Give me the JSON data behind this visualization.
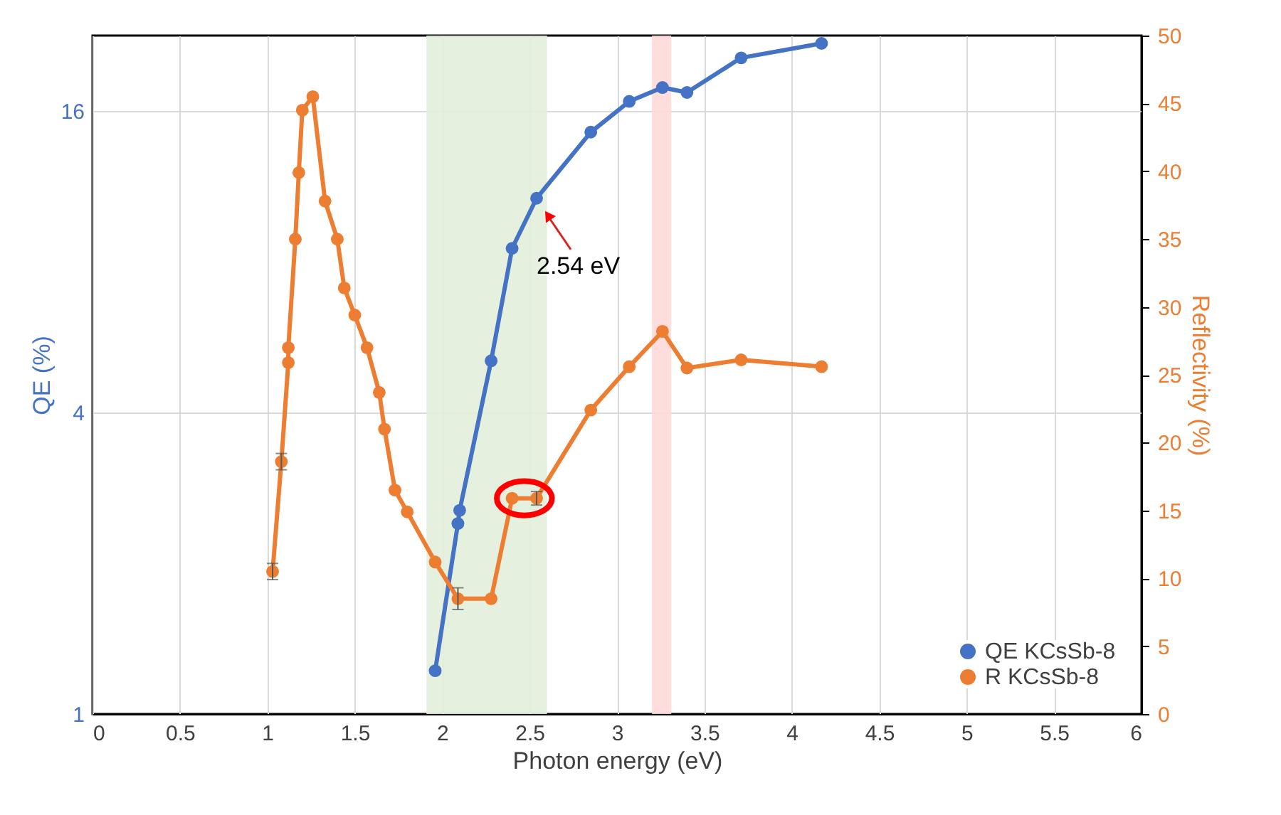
{
  "chart_data": {
    "type": "line",
    "xlabel": "Photon energy (eV)",
    "ylabel": "QE (%)",
    "y2label": "Reflectivity (%)",
    "xlim": [
      0,
      6
    ],
    "xticks": [
      0,
      0.5,
      1,
      1.5,
      2,
      2.5,
      3,
      3.5,
      4,
      4.5,
      5,
      5.5,
      6
    ],
    "ylim": [
      1,
      22.6
    ],
    "yticks": [
      1,
      4,
      16
    ],
    "log": "y",
    "y2lim": [
      0,
      50
    ],
    "y2ticks": [
      0,
      5,
      10,
      15,
      20,
      25,
      30,
      35,
      40,
      45,
      50
    ],
    "grid": true,
    "legend": "bottom right",
    "marker": "circle",
    "line_style": "solid",
    "series": [
      {
        "name": "QE KCsSb-8",
        "color": "#4472c4",
        "x": [
          1.96,
          2.09,
          2.1,
          2.28,
          2.4,
          2.54,
          2.85,
          3.07,
          3.26,
          3.4,
          3.71,
          4.17
        ],
        "values": [
          1.22,
          2.4,
          2.55,
          5.07,
          8.5,
          10.7,
          14.5,
          16.7,
          17.8,
          17.4,
          20.4,
          21.8
        ]
      },
      {
        "name": "R KCsSb-8",
        "color": "#ed7d31",
        "axis": "y2",
        "x": [
          1.03,
          1.08,
          1.12,
          1.12,
          1.16,
          1.18,
          1.2,
          1.26,
          1.33,
          1.4,
          1.44,
          1.5,
          1.57,
          1.64,
          1.67,
          1.73,
          1.8,
          1.96,
          2.09,
          2.28,
          2.4,
          2.54,
          2.85,
          3.07,
          3.26,
          3.4,
          3.71,
          4.17
        ],
        "values": [
          10.5,
          18.6,
          25.9,
          27.0,
          35.0,
          39.9,
          44.5,
          45.5,
          37.8,
          35.0,
          31.4,
          29.4,
          27.0,
          23.7,
          21.0,
          16.5,
          14.9,
          11.2,
          8.5,
          8.5,
          15.9,
          15.9,
          22.4,
          25.6,
          28.2,
          25.5,
          26.1,
          25.6
        ],
        "errors": [
          0.6,
          0.6,
          null,
          null,
          null,
          null,
          null,
          null,
          null,
          null,
          null,
          null,
          null,
          null,
          null,
          null,
          null,
          null,
          0.8,
          null,
          null,
          0.5,
          null,
          null,
          null,
          null,
          null,
          null
        ]
      }
    ],
    "bands": [
      {
        "axis": "x",
        "from": 1.91,
        "to": 2.6,
        "color": "#e2efda"
      },
      {
        "axis": "x",
        "from": 3.2,
        "to": 3.31,
        "color": "#ffd9d9"
      }
    ],
    "annotations": [
      {
        "text": "2.54 eV",
        "x": 2.54,
        "y": 10.7
      }
    ]
  }
}
